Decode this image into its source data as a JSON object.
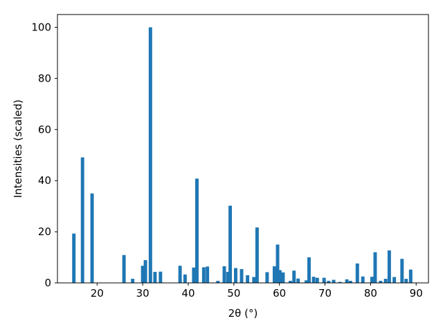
{
  "chart_data": {
    "type": "bar",
    "xlabel": "2θ (°)",
    "ylabel": "Intensities (scaled)",
    "xlim": [
      11.3,
      92.7
    ],
    "ylim": [
      0,
      105
    ],
    "xticks": [
      20,
      30,
      40,
      50,
      60,
      70,
      80,
      90
    ],
    "yticks": [
      0,
      20,
      40,
      60,
      80,
      100
    ],
    "bar_width": 0.75,
    "bar_color": "#1f77b4",
    "grid": false,
    "legend": "none",
    "x": [
      14.9,
      16.8,
      18.9,
      25.9,
      27.8,
      30.0,
      30.6,
      31.7,
      32.7,
      33.9,
      38.2,
      39.3,
      41.2,
      41.9,
      43.4,
      44.2,
      46.5,
      47.9,
      48.7,
      49.2,
      50.4,
      51.7,
      53.0,
      54.4,
      55.1,
      57.3,
      58.9,
      59.6,
      60.1,
      60.8,
      62.4,
      63.2,
      64.1,
      65.9,
      66.5,
      67.5,
      68.3,
      69.8,
      70.8,
      71.9,
      73.3,
      74.8,
      75.6,
      77.1,
      78.3,
      80.3,
      81.0,
      82.2,
      83.3,
      84.1,
      85.2,
      86.9,
      87.8,
      88.8
    ],
    "values": [
      19.3,
      49.1,
      35.0,
      10.9,
      1.6,
      6.7,
      8.9,
      100.0,
      4.3,
      4.4,
      6.7,
      3.3,
      6.0,
      40.8,
      6.1,
      6.4,
      0.8,
      6.5,
      4.3,
      30.2,
      5.8,
      5.4,
      3.0,
      2.3,
      21.7,
      4.2,
      6.5,
      15.0,
      5.0,
      4.1,
      0.8,
      4.8,
      1.7,
      1.0,
      10.0,
      2.4,
      2.0,
      2.0,
      0.8,
      1.2,
      0.4,
      1.4,
      0.8,
      7.6,
      2.5,
      2.4,
      12.0,
      0.8,
      1.6,
      12.7,
      2.3,
      9.4,
      1.6,
      5.2
    ]
  }
}
